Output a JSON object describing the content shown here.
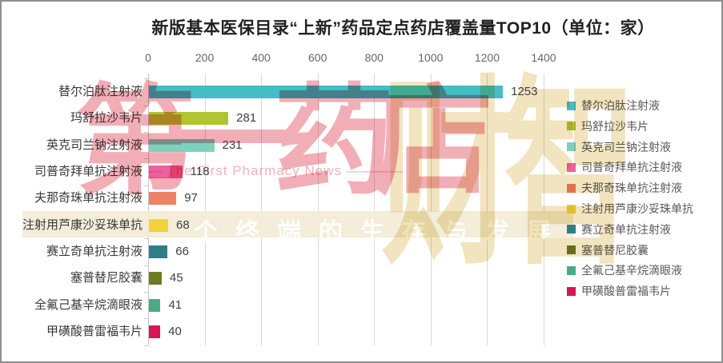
{
  "chart_data": {
    "type": "bar",
    "orientation": "horizontal",
    "title": "新版基本医保目录“上新”药品定点药店覆盖量TOP10（单位：家）",
    "categories": [
      "替尔泊肽注射液",
      "玛舒拉沙韦片",
      "英克司兰钠注射液",
      "司普奇拜单抗注射液",
      "夫那奇珠单抗注射液",
      "注射用芦康沙妥珠单抗",
      "赛立奇单抗注射液",
      "塞普替尼胶囊",
      "全氟己基辛烷滴眼液",
      "甲磺酸普雷福韦片"
    ],
    "values": [
      1253,
      281,
      231,
      118,
      97,
      68,
      66,
      45,
      41,
      40
    ],
    "bar_colors": [
      "#45bdc4",
      "#b2c530",
      "#7dd2be",
      "#ee5f9f",
      "#ef8165",
      "#f0d43c",
      "#2e7e88",
      "#6f7b1f",
      "#49ad84",
      "#d91556"
    ],
    "xlabel": "",
    "ylabel": "",
    "xlim": [
      0,
      1400
    ],
    "x_ticks": [
      0,
      200,
      400,
      600,
      800,
      1000,
      1200,
      1400
    ],
    "grid": true,
    "legend_position": "right",
    "legend": [
      "替尔泊肽注射液",
      "玛舒拉沙韦片",
      "英克司兰钠注射液",
      "司普奇拜单抗注射液",
      "夫那奇珠单抗注射液",
      "注射用芦康沙妥珠单抗",
      "赛立奇单抗注射液",
      "塞普替尼胶囊",
      "全氟己基辛烷滴眼液",
      "甲磺酸普雷福韦片"
    ]
  },
  "watermark": {
    "brand_cn_left": "第一药店",
    "brand_cn_right": "财智",
    "brand_en": "— The First Pharmacy News ————",
    "strip_text": "个终端的生存与发展",
    "colors": {
      "pink": "#f2aeb6",
      "tan": "#f1e4be",
      "strip_bg": "#f2ebd6"
    }
  }
}
